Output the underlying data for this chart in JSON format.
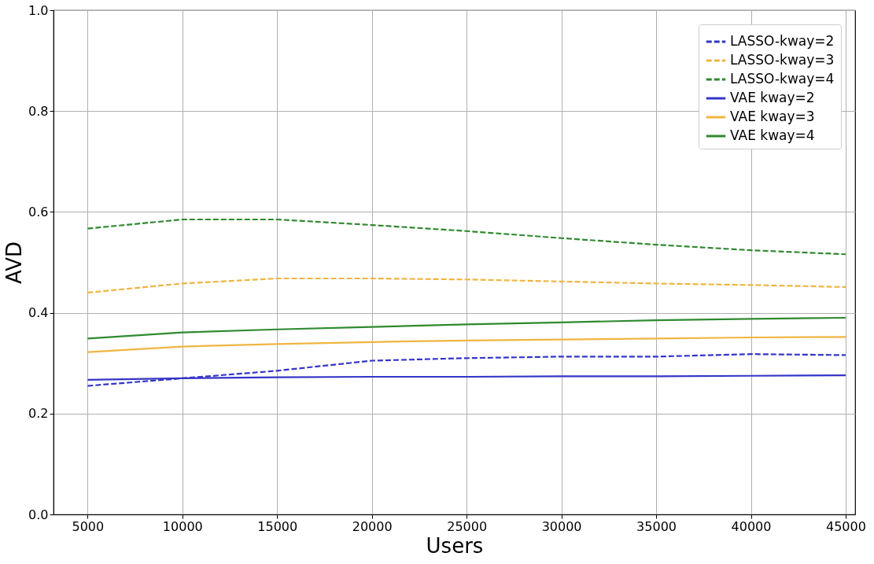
{
  "chart_data": {
    "type": "line",
    "xlabel": "Users",
    "ylabel": "AVD",
    "x": [
      5000,
      10000,
      15000,
      20000,
      25000,
      30000,
      35000,
      40000,
      45000
    ],
    "series": [
      {
        "name": "LASSO-kway=2",
        "color": "#3535c8",
        "line_style": "dashed",
        "values": [
          0.255,
          0.27,
          0.285,
          0.305,
          0.31,
          0.313,
          0.313,
          0.318,
          0.316
        ]
      },
      {
        "name": "LASSO-kway=3",
        "color": "#f0b541",
        "line_style": "dashed",
        "values": [
          0.44,
          0.458,
          0.468,
          0.468,
          0.466,
          0.462,
          0.458,
          0.455,
          0.451
        ]
      },
      {
        "name": "LASSO-kway=4",
        "color": "#2f8a2f",
        "line_style": "dashed",
        "values": [
          0.567,
          0.585,
          0.585,
          0.574,
          0.562,
          0.548,
          0.535,
          0.524,
          0.516
        ]
      },
      {
        "name": "VAE kway=2",
        "color": "#3535c8",
        "line_style": "solid",
        "values": [
          0.267,
          0.27,
          0.272,
          0.273,
          0.273,
          0.274,
          0.274,
          0.275,
          0.276
        ]
      },
      {
        "name": "VAE kway=3",
        "color": "#f0b541",
        "line_style": "solid",
        "values": [
          0.322,
          0.333,
          0.338,
          0.342,
          0.345,
          0.347,
          0.349,
          0.351,
          0.352
        ]
      },
      {
        "name": "VAE kway=4",
        "color": "#2f8a2f",
        "line_style": "solid",
        "values": [
          0.349,
          0.361,
          0.367,
          0.372,
          0.377,
          0.381,
          0.385,
          0.388,
          0.39
        ]
      }
    ],
    "xlim": [
      3200,
      45500
    ],
    "xticks": [
      5000,
      10000,
      15000,
      20000,
      25000,
      30000,
      35000,
      40000,
      45000
    ],
    "ylim": [
      0,
      1
    ],
    "yticks": [
      {
        "value": 0,
        "label": "0.0"
      },
      0.2,
      0.4,
      0.6,
      0.8,
      {
        "value": 1,
        "label": "1.0"
      }
    ],
    "grid": true,
    "legend": "top right",
    "marker": "none"
  }
}
